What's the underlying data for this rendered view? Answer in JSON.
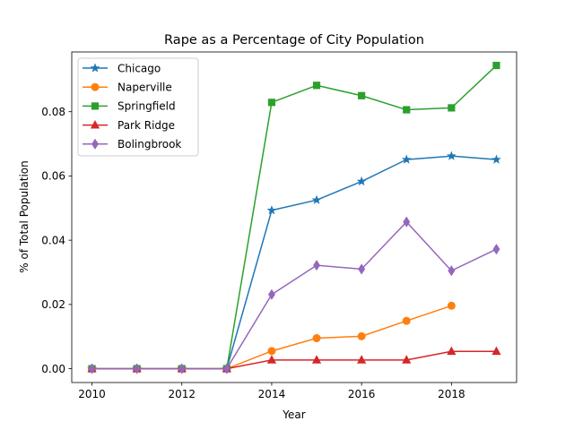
{
  "chart_data": {
    "type": "line",
    "title": "Rape as a Percentage of City Population",
    "xlabel": "Year",
    "ylabel": "% of Total Population",
    "xlim": [
      2009.55,
      2019.45
    ],
    "ylim": [
      -0.0043,
      0.0986
    ],
    "xticks": [
      2010,
      2012,
      2014,
      2016,
      2018
    ],
    "yticks": [
      0.0,
      0.02,
      0.04,
      0.06,
      0.08
    ],
    "ytick_labels": [
      "0.00",
      "0.02",
      "0.04",
      "0.06",
      "0.08"
    ],
    "grid": false,
    "legend_position": "upper-left",
    "series": [
      {
        "name": "Chicago",
        "color": "#1f77b4",
        "marker": "star",
        "x": [
          2010,
          2011,
          2012,
          2013,
          2014,
          2015,
          2016,
          2017,
          2018,
          2019
        ],
        "values": [
          0.0,
          0.0,
          0.0,
          0.0,
          0.0493,
          0.0525,
          0.0583,
          0.0651,
          0.0662,
          0.0651
        ]
      },
      {
        "name": "Naperville",
        "color": "#ff7f0e",
        "marker": "circle",
        "x": [
          2010,
          2011,
          2012,
          2013,
          2014,
          2015,
          2016,
          2017,
          2018
        ],
        "values": [
          0.0,
          0.0,
          0.0,
          0.0,
          0.0055,
          0.0095,
          0.0101,
          0.0149,
          0.0196
        ]
      },
      {
        "name": "Springfield",
        "color": "#2ca02c",
        "marker": "square",
        "x": [
          2010,
          2011,
          2012,
          2013,
          2014,
          2015,
          2016,
          2017,
          2018,
          2019
        ],
        "values": [
          0.0,
          0.0,
          0.0,
          0.0,
          0.0829,
          0.0882,
          0.085,
          0.0806,
          0.0812,
          0.0944
        ]
      },
      {
        "name": "Park Ridge",
        "color": "#d62728",
        "marker": "triangle",
        "x": [
          2010,
          2011,
          2012,
          2013,
          2014,
          2015,
          2016,
          2017,
          2018,
          2019
        ],
        "values": [
          0.0,
          0.0,
          0.0,
          0.0,
          0.0027,
          0.0027,
          0.0027,
          0.0027,
          0.0054,
          0.0054
        ]
      },
      {
        "name": "Bolingbrook",
        "color": "#9467bd",
        "marker": "diamond",
        "x": [
          2010,
          2011,
          2012,
          2013,
          2014,
          2015,
          2016,
          2017,
          2018,
          2019
        ],
        "values": [
          0.0,
          0.0,
          0.0,
          0.0,
          0.0231,
          0.0322,
          0.031,
          0.0457,
          0.0305,
          0.0372
        ]
      }
    ]
  }
}
